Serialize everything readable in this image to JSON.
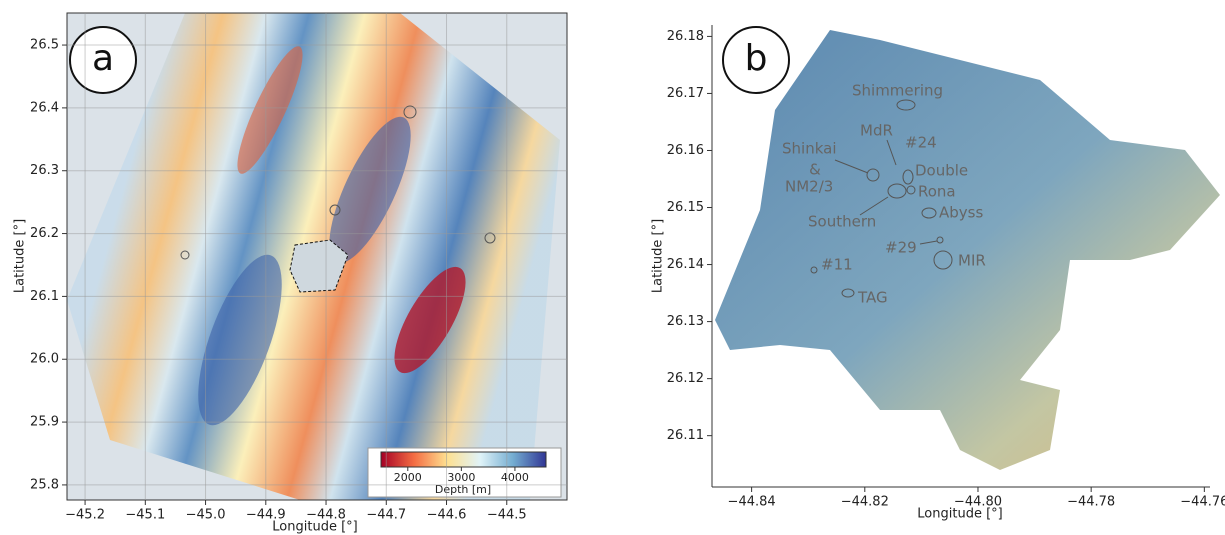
{
  "panels": [
    {
      "label": "a",
      "x_label": "Longitude [°]",
      "y_label": "Latitude [°]",
      "xlim": [
        -45.23,
        -44.4
      ],
      "ylim": [
        25.776,
        26.551
      ],
      "xticks": [
        {
          "value": -45.2,
          "label": "−45.2"
        },
        {
          "value": -45.1,
          "label": "−45.1"
        },
        {
          "value": -45.0,
          "label": "−45.0"
        },
        {
          "value": -44.9,
          "label": "−44.9"
        },
        {
          "value": -44.8,
          "label": "−44.8"
        },
        {
          "value": -44.7,
          "label": "−44.7"
        },
        {
          "value": -44.6,
          "label": "−44.6"
        },
        {
          "value": -44.5,
          "label": "−44.5"
        }
      ],
      "yticks": [
        25.8,
        25.9,
        {
          "value": 26.0,
          "label": "26.0"
        },
        26.1,
        26.2,
        26.3,
        26.4,
        26.5
      ],
      "grid": true,
      "colorbar": {
        "label": "Depth [m]",
        "lim": [
          1500,
          4580
        ],
        "ticks": [
          2000,
          3000,
          4000
        ],
        "colors": [
          "#a50026",
          "#f46d43",
          "#fee090",
          "#e0f3f8",
          "#74add1",
          "#313695"
        ]
      }
    },
    {
      "label": "b",
      "x_label": "Longitude [°]",
      "y_label": "Latitude [°]",
      "xlim": [
        -44.847,
        -44.759
      ],
      "ylim": [
        26.101,
        26.182
      ],
      "xticks": [
        {
          "value": -44.84,
          "label": "−44.84"
        },
        {
          "value": -44.82,
          "label": "−44.82"
        },
        {
          "value": -44.8,
          "label": "−44.80"
        },
        {
          "value": -44.78,
          "label": "−44.78"
        },
        {
          "value": -44.76,
          "label": "−44.76"
        }
      ],
      "yticks": [
        26.11,
        26.12,
        26.13,
        26.14,
        26.15,
        26.16,
        26.17,
        26.18
      ],
      "grid": false,
      "annotations": [
        "Shimmering",
        "MdR",
        "#24",
        "Shinkai",
        "&",
        "NM2/3",
        "Double",
        "Rona",
        "Southern",
        "Abyss",
        "#29",
        "MIR",
        "#11",
        "TAG"
      ]
    }
  ]
}
